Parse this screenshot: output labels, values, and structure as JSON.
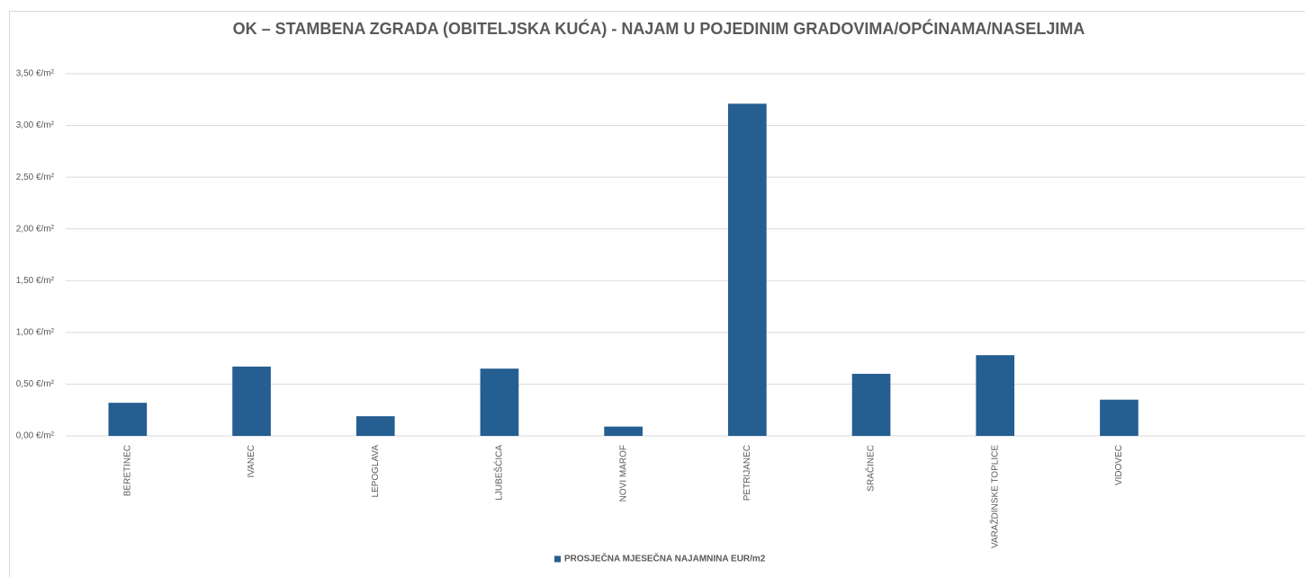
{
  "chart_data": {
    "type": "bar",
    "title": "OK – STAMBENA ZGRADA (OBITELJSKA KUĆA) - NAJAM U POJEDINIM GRADOVIMA/OPĆINAMA/NASELJIMA",
    "categories": [
      "BERETINEC",
      "IVANEC",
      "LEPOGLAVA",
      "LJUBEŠĆICA",
      "NOVI MAROF",
      "PETRIJANEC",
      "SRAČINEC",
      "VARAŽDINSKE TOPLICE",
      "VIDOVEC",
      null
    ],
    "series": [
      {
        "name": "PROSJEČNA MJESEČNA NAJAMNINA EUR/m2",
        "color": "#255e91",
        "values": [
          0.32,
          0.67,
          0.19,
          0.65,
          0.09,
          3.21,
          0.6,
          0.78,
          0.35,
          null
        ]
      }
    ],
    "ylim": [
      0,
      3.5
    ],
    "yticks": [
      {
        "value": 0,
        "label": "0,00 €/m²"
      },
      {
        "value": 0.5,
        "label": "0,50 €/m²"
      },
      {
        "value": 1,
        "label": "1,00 €/m²"
      },
      {
        "value": 1.5,
        "label": "1,50 €/m²"
      },
      {
        "value": 2,
        "label": "2,00 €/m²"
      },
      {
        "value": 2.5,
        "label": "2,50 €/m²"
      },
      {
        "value": 3,
        "label": "3,00 €/m²"
      },
      {
        "value": 3.5,
        "label": "3,50 €/m²"
      }
    ],
    "grid": true,
    "legend": "bottom"
  }
}
